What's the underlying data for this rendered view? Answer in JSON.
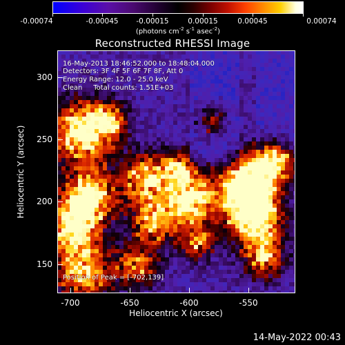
{
  "colorbar": {
    "tick_labels": [
      "-0.00074",
      "-0.00045",
      "-0.00015",
      "0.00015",
      "0.00045",
      "0.00074"
    ],
    "units_prefix": "(photons cm",
    "units_exp1": "-2",
    "units_mid": " s",
    "units_exp2": "-1",
    "units_mid2": " asec",
    "units_exp3": "-2",
    "units_suffix": ")"
  },
  "title": "Reconstructed RHESSI Image",
  "annotations": {
    "line1": "16-May-2013 18:46:52.000 to 18:48:04.000",
    "line2": "Detectors: 3F 4F 5F 6F 7F 8F, Att 0",
    "line3": "Energy Range: 12.0 - 25.0 keV",
    "line4": "Clean     Total counts: 1.51E+03",
    "peak": "Position of Peak = [-702,139]"
  },
  "axes": {
    "xlabel": "Heliocentric X (arcsec)",
    "ylabel": "Heliocentric Y (arcsec)",
    "xticks": [
      "-700",
      "-650",
      "-600",
      "-550"
    ],
    "yticks": [
      "300",
      "250",
      "200",
      "150"
    ]
  },
  "footer": {
    "timestamp": "14-May-2022 00:43"
  }
}
